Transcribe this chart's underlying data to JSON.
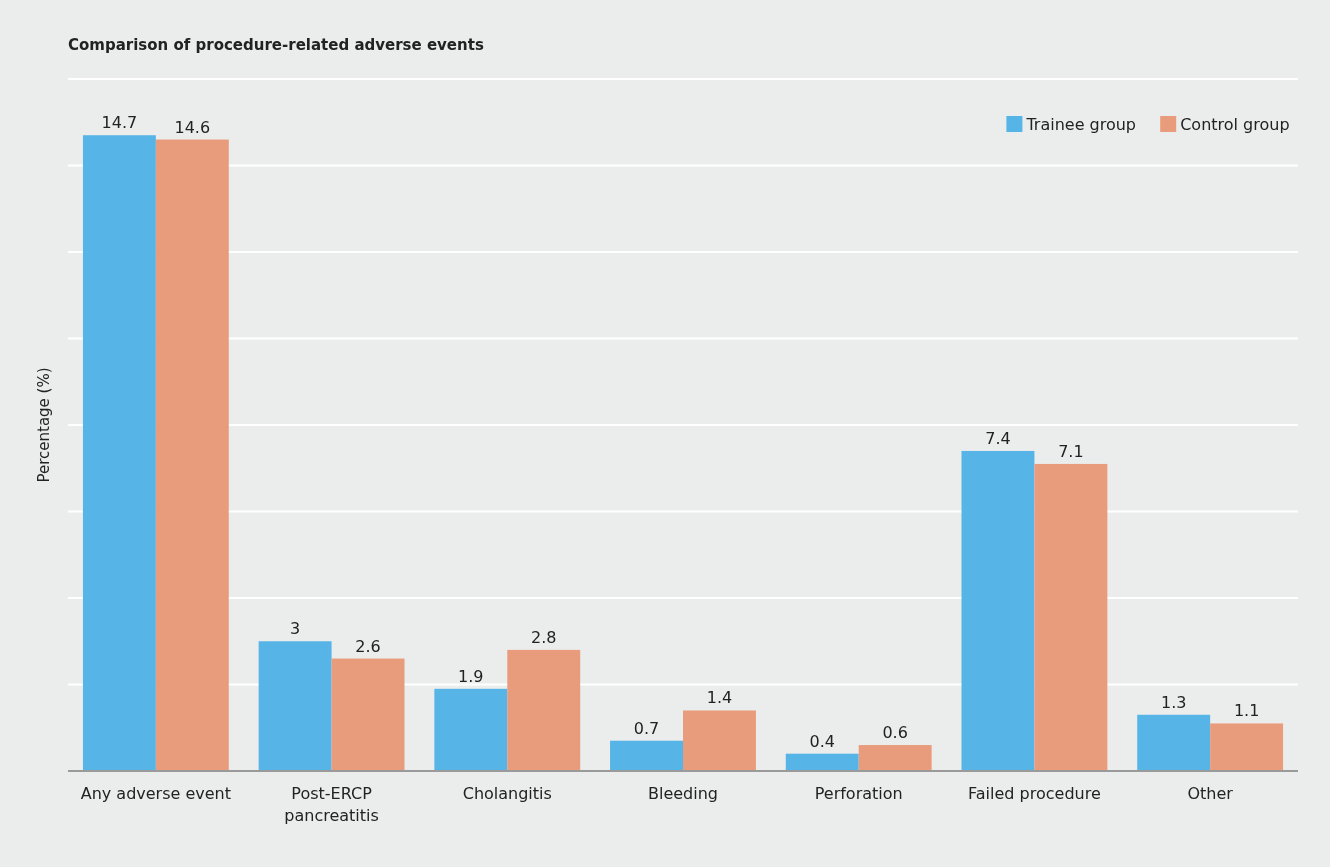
{
  "chart_data": {
    "type": "bar",
    "title": "Comparison of procedure-related adverse events",
    "ylabel": "Percentage (%)",
    "categories": [
      "Any adverse event",
      "Post-ERCP pancreatitis",
      "Cholangitis",
      "Bleeding",
      "Perforation",
      "Failed procedure",
      "Other"
    ],
    "series": [
      {
        "name": "Trainee group",
        "color": "#56b4e6",
        "values": [
          14.7,
          3,
          1.9,
          0.7,
          0.4,
          7.4,
          1.3
        ]
      },
      {
        "name": "Control group",
        "color": "#e99c7b",
        "values": [
          14.6,
          2.6,
          2.8,
          1.4,
          0.6,
          7.1,
          1.1
        ]
      }
    ],
    "ylim": [
      0,
      16
    ],
    "yticks": [
      {
        "value": 0,
        "label": null
      },
      {
        "value": 2,
        "label": null
      },
      {
        "value": 4,
        "label": null
      },
      {
        "value": 6,
        "label": null
      },
      {
        "value": 8,
        "label": null
      },
      {
        "value": 10,
        "label": null
      },
      {
        "value": 12,
        "label": null
      },
      {
        "value": 14,
        "label": null
      },
      {
        "value": 16,
        "label": null
      }
    ],
    "grid": "y",
    "legend": "top right",
    "data_labels": true,
    "tick_labels": "x"
  }
}
